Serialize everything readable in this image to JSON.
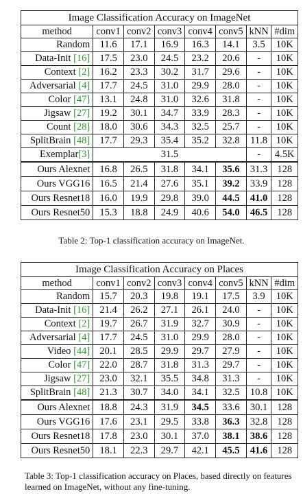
{
  "table1": {
    "title": "Image Classification Accuracy on ImageNet",
    "headers": [
      "method",
      "conv1",
      "conv2",
      "conv3",
      "conv4",
      "conv5",
      "kNN",
      "#dim"
    ],
    "rows": [
      {
        "method": "Random",
        "cite": "",
        "cells": [
          "11.6",
          "17.1",
          "16.9",
          "16.3",
          "14.1",
          "3.5",
          "10K"
        ]
      },
      {
        "method": "Data-Init ",
        "cite": "[16]",
        "cells": [
          "17.5",
          "23.0",
          "24.5",
          "23.2",
          "20.6",
          "-",
          "10K"
        ]
      },
      {
        "method": "Context ",
        "cite": "[2]",
        "cells": [
          "16.2",
          "23.3",
          "30.2",
          "31.7",
          "29.6",
          "-",
          "10K"
        ]
      },
      {
        "method": "Adversarial ",
        "cite": "[4]",
        "cells": [
          "17.7",
          "24.5",
          "31.0",
          "29.9",
          "28.0",
          "-",
          "10K"
        ]
      },
      {
        "method": "Color ",
        "cite": "[47]",
        "cells": [
          "13.1",
          "24.8",
          "31.0",
          "32.6",
          "31.8",
          "-",
          "10K"
        ]
      },
      {
        "method": "Jigsaw ",
        "cite": "[27]",
        "cells": [
          "19.2",
          "30.1",
          "34.7",
          "33.9",
          "28.3",
          "-",
          "10K"
        ]
      },
      {
        "method": "Count ",
        "cite": "[28]",
        "cells": [
          "18.0",
          "30.6",
          "34.3",
          "32.5",
          "25.7",
          "-",
          "10K"
        ]
      },
      {
        "method": "SplitBrain ",
        "cite": "[48]",
        "cells": [
          "17.7",
          "29.3",
          "35.4",
          "35.2",
          "32.8",
          "11.8",
          "10K"
        ]
      }
    ],
    "exemplar": {
      "method": "Exemplar",
      "cite": "[3]",
      "merged": "31.5",
      "knn": "-",
      "dim": "4.5K"
    },
    "ours": [
      {
        "method": "Ours Alexnet",
        "cells": [
          "16.8",
          "26.5",
          "31.8",
          "34.1",
          "35.6",
          "31.3",
          "128"
        ],
        "bold": [
          4
        ]
      },
      {
        "method": "Ours VGG16",
        "cells": [
          "16.5",
          "21.4",
          "27.6",
          "35.1",
          "39.2",
          "33.9",
          "128"
        ],
        "bold": [
          4
        ]
      },
      {
        "method": "Ours Resnet18",
        "cells": [
          "16.0",
          "19.9",
          "29.8",
          "39.0",
          "44.5",
          "41.0",
          "128"
        ],
        "bold": [
          4,
          5
        ]
      },
      {
        "method": "Ours Resnet50",
        "cells": [
          "15.3",
          "18.8",
          "24.9",
          "40.6",
          "54.0",
          "46.5",
          "128"
        ],
        "bold": [
          4,
          5
        ]
      }
    ],
    "caption": "Table 2: Top-1 classification accuracy on ImageNet."
  },
  "table2": {
    "title": "Image Classification Accuracy on Places",
    "headers": [
      "method",
      "conv1",
      "conv2",
      "conv3",
      "conv4",
      "conv5",
      "kNN",
      "#dim"
    ],
    "rows": [
      {
        "method": "Random",
        "cite": "",
        "cells": [
          "15.7",
          "20.3",
          "19.8",
          "19.1",
          "17.5",
          "3.9",
          "10K"
        ]
      },
      {
        "method": "Data-Init ",
        "cite": "[16]",
        "cells": [
          "21.4",
          "26.2",
          "27.1",
          "26.1",
          "24.0",
          "-",
          "10K"
        ]
      },
      {
        "method": "Context ",
        "cite": "[2]",
        "cells": [
          "19.7",
          "26.7",
          "31.9",
          "32.7",
          "30.9",
          "-",
          "10K"
        ]
      },
      {
        "method": "Adversarial ",
        "cite": "[4]",
        "cells": [
          "17.7",
          "24.5",
          "31.0",
          "29.9",
          "28.0",
          "-",
          "10K"
        ]
      },
      {
        "method": "Video ",
        "cite": "[44]",
        "cells": [
          "20.1",
          "28.5",
          "29.9",
          "29.7",
          "27.9",
          "-",
          "10K"
        ]
      },
      {
        "method": "Color ",
        "cite": "[47]",
        "cells": [
          "22.0",
          "28.7",
          "31.8",
          "31.3",
          "29.7",
          "-",
          "10K"
        ]
      },
      {
        "method": "Jigsaw ",
        "cite": "[27]",
        "cells": [
          "23.0",
          "32.1",
          "35.5",
          "34.8",
          "31.3",
          "-",
          "10K"
        ]
      },
      {
        "method": "SplitBrain ",
        "cite": "[48]",
        "cells": [
          "21.3",
          "30.7",
          "34.0",
          "34.1",
          "32.5",
          "10.8",
          "10K"
        ]
      }
    ],
    "ours": [
      {
        "method": "Ours Alexnet",
        "cells": [
          "18.8",
          "24.3",
          "31.9",
          "34.5",
          "33.6",
          "30.1",
          "128"
        ],
        "bold": [
          3
        ]
      },
      {
        "method": "Ours VGG16",
        "cells": [
          "17.6",
          "23.1",
          "29.5",
          "33.8",
          "36.3",
          "32.8",
          "128"
        ],
        "bold": [
          4
        ]
      },
      {
        "method": "Ours Resnet18",
        "cells": [
          "17.8",
          "23.0",
          "30.1",
          "37.0",
          "38.1",
          "38.6",
          "128"
        ],
        "bold": [
          4,
          5
        ]
      },
      {
        "method": "Ours Resnet50",
        "cells": [
          "18.1",
          "22.3",
          "29.7",
          "42.1",
          "45.5",
          "41.6",
          "128"
        ],
        "bold": [
          4,
          5
        ]
      }
    ],
    "caption": "Table 3: Top-1 classification accuracy on Places, based directly on features learned on ImageNet, without any fine-tuning."
  }
}
